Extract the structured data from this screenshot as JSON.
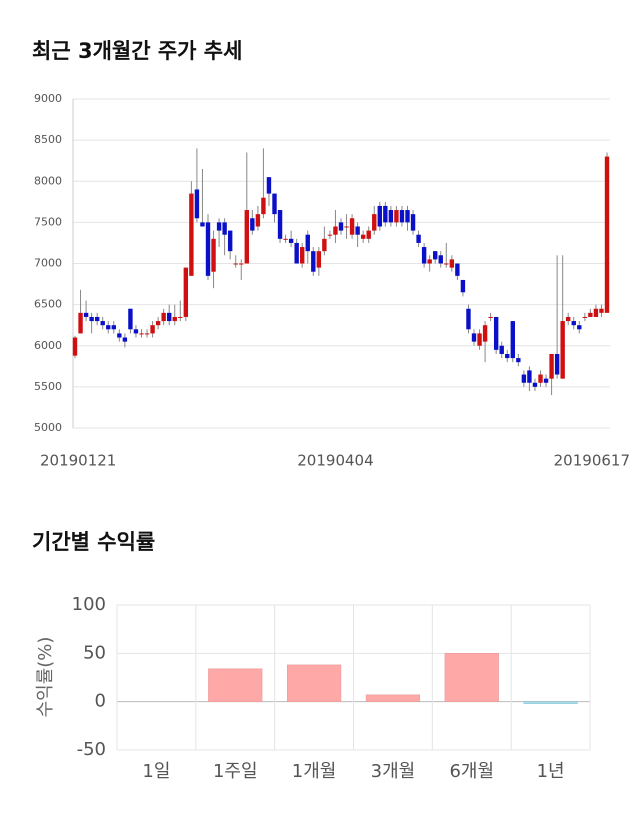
{
  "chart_data": [
    {
      "type": "candlestick",
      "title": "최근 3개월간 주가 추세",
      "categories": [
        "20190121",
        null,
        null,
        null,
        null,
        null,
        null,
        null,
        null,
        null,
        null,
        null,
        null,
        null,
        null,
        null,
        null,
        null,
        null,
        null,
        null,
        null,
        null,
        null,
        null,
        null,
        null,
        null,
        null,
        null,
        null,
        null,
        null,
        null,
        null,
        null,
        null,
        null,
        null,
        null,
        null,
        null,
        null,
        null,
        null,
        null,
        null,
        "20190404",
        null,
        null,
        null,
        null,
        null,
        null,
        null,
        null,
        null,
        null,
        null,
        null,
        null,
        null,
        null,
        null,
        null,
        null,
        null,
        null,
        null,
        null,
        null,
        null,
        null,
        null,
        null,
        null,
        null,
        null,
        null,
        null,
        null,
        null,
        null,
        null,
        null,
        null,
        null,
        null,
        null,
        null,
        null,
        null,
        null,
        null,
        null,
        null,
        "20190617"
      ],
      "open": [
        5880,
        6150,
        6400,
        6350,
        6350,
        6300,
        6250,
        6250,
        6150,
        6100,
        6450,
        6200,
        6150,
        6150,
        6150,
        6250,
        6300,
        6400,
        6300,
        6350,
        6350,
        6850,
        7900,
        7500,
        7500,
        6900,
        7500,
        7500,
        7400,
        7000,
        7000,
        7000,
        7550,
        7450,
        7600,
        8050,
        7850,
        7650,
        7300,
        7300,
        7250,
        7000,
        7350,
        7150,
        6950,
        7150,
        7350,
        7350,
        7500,
        7450,
        7350,
        7450,
        7300,
        7300,
        7400,
        7700,
        7700,
        7650,
        7500,
        7650,
        7650,
        7600,
        7350,
        7200,
        7000,
        7150,
        7100,
        7000,
        6950,
        7000,
        6800,
        6450,
        6150,
        6000,
        6050,
        6350,
        6350,
        6000,
        5900,
        6300,
        5850,
        5650,
        5700,
        5550,
        5550,
        5600,
        5600,
        5900,
        5600,
        6300,
        6300,
        6250,
        6350,
        6350,
        6350,
        6400,
        6400
      ],
      "high": [
        6120,
        6680,
        6550,
        6400,
        6400,
        6350,
        6300,
        6300,
        6200,
        6150,
        6450,
        6250,
        6200,
        6200,
        6300,
        6350,
        6450,
        6500,
        6500,
        6550,
        6950,
        8000,
        8400,
        8150,
        7600,
        7400,
        7550,
        7550,
        7400,
        7100,
        7050,
        8350,
        7650,
        7700,
        8400,
        8050,
        7850,
        7650,
        7350,
        7400,
        7300,
        7250,
        7400,
        7200,
        7200,
        7450,
        7400,
        7650,
        7550,
        7600,
        7600,
        7500,
        7400,
        7450,
        7700,
        7750,
        7750,
        7700,
        7700,
        7700,
        7700,
        7650,
        7400,
        7250,
        7100,
        7150,
        7150,
        7250,
        7100,
        7000,
        6800,
        6500,
        6200,
        6200,
        6300,
        6400,
        6350,
        6050,
        5950,
        6300,
        5900,
        5700,
        5750,
        5600,
        5700,
        5650,
        5900,
        7100,
        7100,
        6400,
        6350,
        6300,
        6400,
        6450,
        6500,
        6500,
        8350
      ],
      "low": [
        5850,
        6150,
        6300,
        6150,
        6250,
        6200,
        6150,
        6150,
        6050,
        5980,
        6150,
        6100,
        6100,
        6100,
        6100,
        6200,
        6250,
        6250,
        6250,
        6300,
        6300,
        6850,
        7500,
        7450,
        6800,
        6700,
        7200,
        7100,
        7050,
        6950,
        6800,
        7000,
        7350,
        7400,
        7550,
        7700,
        7500,
        7250,
        7250,
        7200,
        7000,
        6950,
        7000,
        6850,
        6850,
        7100,
        7300,
        7250,
        7350,
        7300,
        7300,
        7200,
        7250,
        7250,
        7350,
        7400,
        7450,
        7450,
        7450,
        7450,
        7400,
        7350,
        7200,
        6950,
        6900,
        7000,
        6950,
        6950,
        6900,
        6800,
        6600,
        6150,
        6000,
        5950,
        5800,
        6300,
        5900,
        5850,
        5800,
        5800,
        5750,
        5500,
        5450,
        5450,
        5500,
        5500,
        5400,
        5600,
        5600,
        6250,
        6200,
        6150,
        6300,
        6350,
        6350,
        6350,
        6400
      ],
      "close": [
        6100,
        6400,
        6350,
        6300,
        6300,
        6250,
        6200,
        6200,
        6100,
        6050,
        6200,
        6150,
        6150,
        6150,
        6250,
        6300,
        6400,
        6300,
        6350,
        6350,
        6950,
        7850,
        7550,
        7450,
        6850,
        7300,
        7400,
        7350,
        7150,
        7000,
        7000,
        7650,
        7400,
        7600,
        7800,
        7850,
        7600,
        7300,
        7300,
        7250,
        7000,
        7200,
        7150,
        6900,
        7150,
        7300,
        7350,
        7450,
        7400,
        7450,
        7550,
        7350,
        7350,
        7400,
        7600,
        7450,
        7500,
        7500,
        7650,
        7500,
        7500,
        7400,
        7250,
        7000,
        7050,
        7050,
        7000,
        7000,
        7050,
        6850,
        6650,
        6200,
        6050,
        6150,
        6250,
        6350,
        5950,
        5900,
        5850,
        5850,
        5800,
        5550,
        5550,
        5500,
        5650,
        5550,
        5900,
        5650,
        6300,
        6350,
        6250,
        6200,
        6350,
        6400,
        6450,
        6450,
        8300
      ],
      "up_color": "#d01010",
      "down_color": "#0a10c8",
      "ylim": [
        5000,
        9000
      ],
      "yticks": [
        5000,
        5500,
        6000,
        6500,
        7000,
        7500,
        8000,
        8500,
        9000
      ],
      "grid": true
    },
    {
      "type": "bar",
      "title": "기간별 수익률",
      "ylabel": "수익률(%)",
      "categories": [
        "1일",
        "1주일",
        "1개월",
        "3개월",
        "6개월",
        "1년"
      ],
      "values": [
        0,
        34,
        38,
        7,
        50,
        -2
      ],
      "color": "#ffa8a8",
      "negative_color": "#a8dbe8",
      "ylim": [
        -50,
        100
      ],
      "yticks": [
        -50,
        0,
        50,
        100
      ],
      "grid": true
    }
  ]
}
